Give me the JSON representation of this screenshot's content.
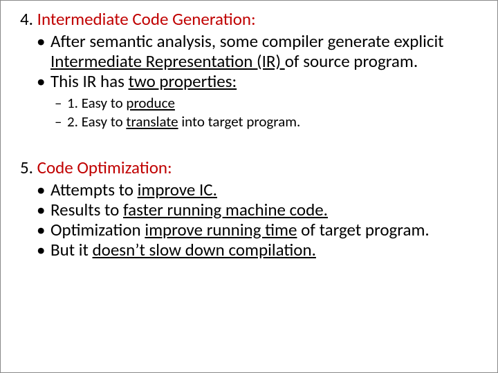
{
  "colors": {
    "heading_red": "#c00000",
    "text_black": "#000000",
    "background": "#ffffff"
  },
  "typography": {
    "font_family": "Calibri",
    "heading_fontsize_pt": 25,
    "body_fontsize_pt": 25,
    "sub_fontsize_pt": 21
  },
  "section4": {
    "number_label": "4. ",
    "title": "Intermediate Code Generation:",
    "bullets": [
      {
        "pre": "After semantic analysis, some compiler generate explicit ",
        "u1": "Intermediate Representation (IR) ",
        "post": "of source program."
      },
      {
        "pre": "This IR has ",
        "u1": "two properties:",
        "post": ""
      }
    ],
    "subbullets": [
      {
        "pre": "1. Easy to ",
        "u1": "produce",
        "post": ""
      },
      {
        "pre": "2. Easy to ",
        "u1": "translate",
        "post": " into target program."
      }
    ]
  },
  "section5": {
    "number_label": "5. ",
    "title": "Code Optimization:",
    "bullets": [
      {
        "pre": "Attempts to ",
        "u1": "improve IC.",
        "post": ""
      },
      {
        "pre": "Results to ",
        "u1": "faster running machine code.",
        "post": ""
      },
      {
        "pre": "Optimization ",
        "u1": "improve running time",
        "post": " of target program."
      },
      {
        "pre": "But it ",
        "u1": "doesn’t slow down compilation.",
        "post": ""
      }
    ]
  }
}
